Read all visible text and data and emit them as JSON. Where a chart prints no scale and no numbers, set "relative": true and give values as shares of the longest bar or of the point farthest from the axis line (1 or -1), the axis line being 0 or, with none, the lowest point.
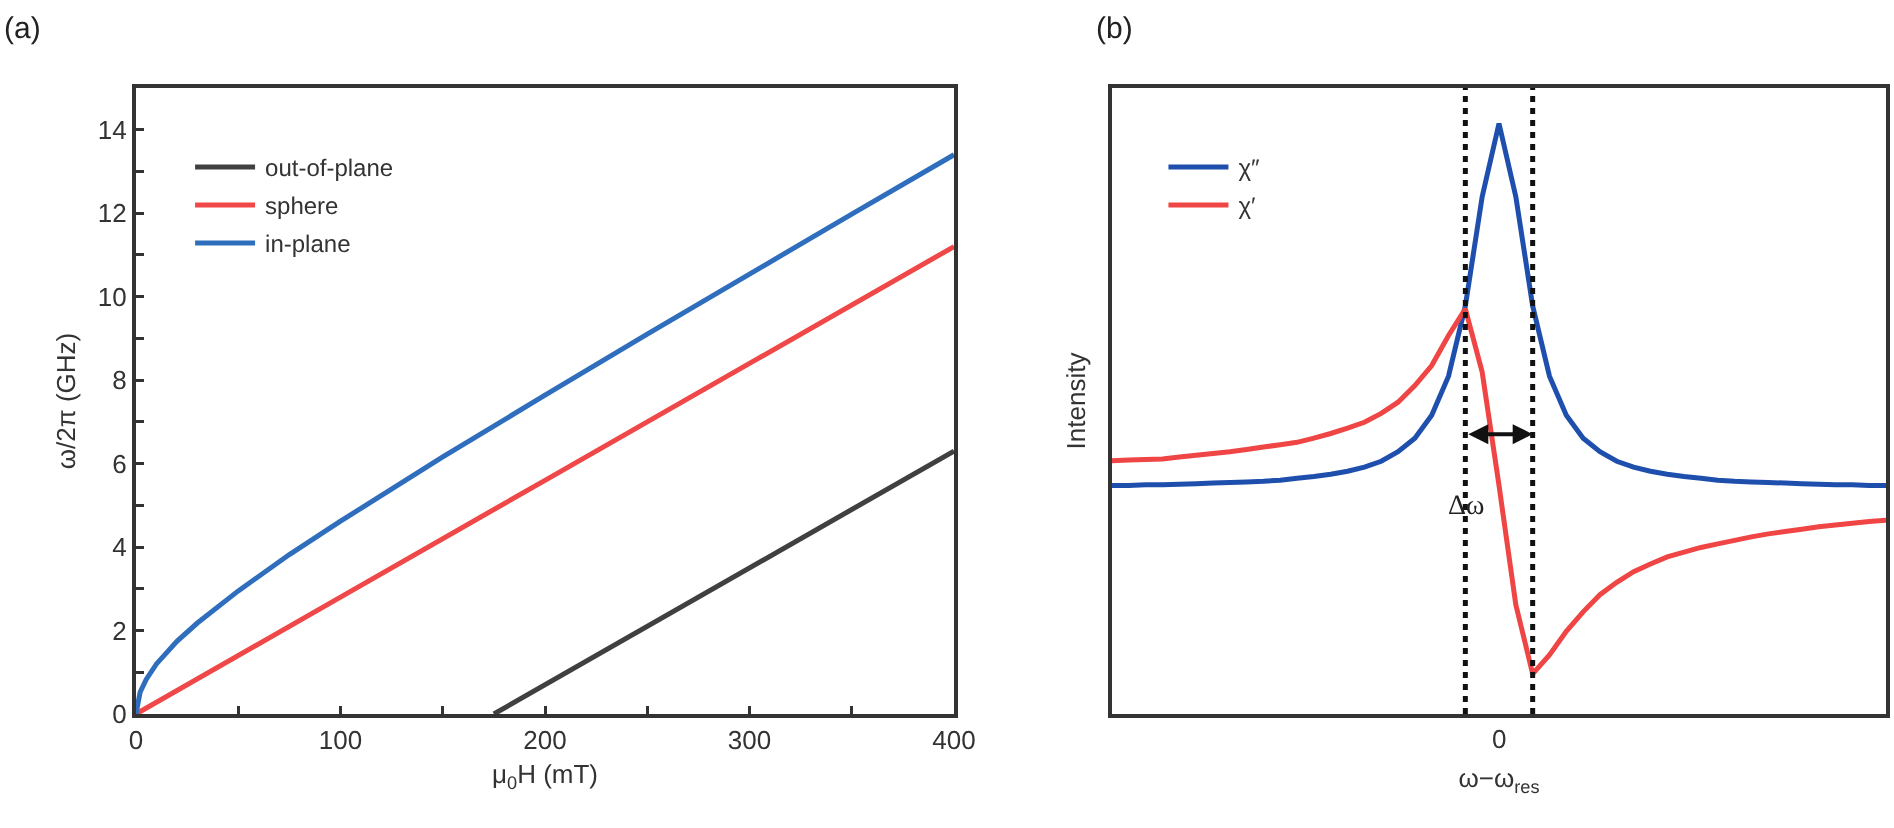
{
  "chart_data": [
    {
      "type": "line",
      "title": "(a)",
      "xlabel": "μ$_{0}$H (mT)",
      "ylabel": "ω/2π (GHz)",
      "xlim": [
        0,
        400
      ],
      "ylim": [
        0,
        15
      ],
      "xticks": [
        0,
        {
          "value": 50,
          "label": null
        },
        100,
        {
          "value": 150,
          "label": null
        },
        200,
        {
          "value": 250,
          "label": null
        },
        300,
        {
          "value": 350,
          "label": null
        },
        400
      ],
      "yticks": [
        0,
        {
          "value": 1,
          "label": null
        },
        2,
        {
          "value": 3,
          "label": null
        },
        4,
        {
          "value": 5,
          "label": null
        },
        6,
        {
          "value": 7,
          "label": null
        },
        8,
        {
          "value": 9,
          "label": null
        },
        10,
        {
          "value": 11,
          "label": null
        },
        12,
        {
          "value": 13,
          "label": null
        },
        14
      ],
      "grid": false,
      "legend": "top left",
      "series": [
        {
          "name": "out-of-plane",
          "color": "#404040",
          "x": [
            175,
            400
          ],
          "values": [
            0,
            6.3
          ]
        },
        {
          "name": "sphere",
          "color": "#f04848",
          "x": [
            0,
            100,
            200,
            300,
            400
          ],
          "values": [
            0,
            2.8,
            5.6,
            8.4,
            11.2
          ]
        },
        {
          "name": "in-plane",
          "color": "#2e6ebd",
          "x": [
            0,
            2,
            5,
            10,
            20,
            30,
            50,
            75,
            100,
            150,
            200,
            250,
            300,
            350,
            400
          ],
          "values": [
            0,
            0.52,
            0.83,
            1.2,
            1.74,
            2.18,
            2.95,
            3.82,
            4.62,
            6.16,
            7.64,
            9.1,
            10.54,
            11.98,
            13.4
          ]
        }
      ]
    },
    {
      "type": "line",
      "title": "(b)",
      "xlabel": "ω−ω$_{res}$",
      "ylabel": "Intensity",
      "relative": true,
      "tick_labels": "x",
      "grid": false,
      "legend": "top left",
      "annotations": [
        "Δω",
        "0"
      ],
      "categories": [
        null,
        null,
        null,
        null,
        null,
        null,
        null,
        null,
        null,
        null,
        null,
        null,
        null,
        null,
        null,
        null,
        null,
        null,
        null,
        null,
        null,
        null,
        null,
        null,
        null,
        null,
        null,
        null,
        null,
        null,
        null,
        null,
        null,
        null,
        null,
        null,
        null,
        null,
        null,
        null,
        null,
        null,
        null,
        null,
        null,
        null,
        null
      ],
      "series": [
        {
          "name": "χ″",
          "color": "#1f4fad",
          "values": [
            0.387,
            0.387,
            0.388,
            0.388,
            0.389,
            0.39,
            0.391,
            0.392,
            0.393,
            0.394,
            0.396,
            0.399,
            0.402,
            0.406,
            0.411,
            0.418,
            0.428,
            0.444,
            0.467,
            0.506,
            0.572,
            0.691,
            0.876,
            1.0,
            0.876,
            0.691,
            0.572,
            0.506,
            0.467,
            0.444,
            0.428,
            0.418,
            0.411,
            0.406,
            0.402,
            0.399,
            0.396,
            0.394,
            0.393,
            0.392,
            0.391,
            0.39,
            0.389,
            0.388,
            0.388,
            0.387,
            0.387
          ]
        },
        {
          "name": "χ′",
          "color": "#f04545",
          "values": [
            0.429,
            0.43,
            0.431,
            0.432,
            0.435,
            0.438,
            0.441,
            0.444,
            0.448,
            0.452,
            0.456,
            0.46,
            0.467,
            0.475,
            0.484,
            0.494,
            0.509,
            0.528,
            0.556,
            0.59,
            0.641,
            0.686,
            0.579,
            0.387,
            0.185,
            0.068,
            0.1,
            0.14,
            0.173,
            0.202,
            0.223,
            0.241,
            0.254,
            0.266,
            0.274,
            0.282,
            0.288,
            0.294,
            0.3,
            0.305,
            0.309,
            0.313,
            0.317,
            0.32,
            0.323,
            0.326,
            0.328
          ]
        }
      ]
    }
  ]
}
